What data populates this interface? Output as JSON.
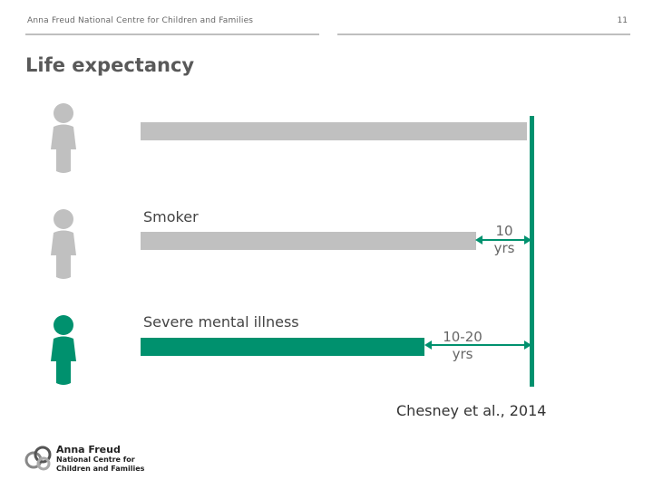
{
  "header": {
    "org": "Anna Freud National Centre for Children and Families",
    "page_number": "11"
  },
  "title": "Life expectancy",
  "rows": [
    {
      "label": "",
      "gap": ""
    },
    {
      "label": "Smoker",
      "gap_line1": "10",
      "gap_line2": "yrs"
    },
    {
      "label": "Severe mental illness",
      "gap_line1": "10-20",
      "gap_line2": "yrs"
    }
  ],
  "citation": "Chesney et al., 2014",
  "logo": {
    "name": "Anna Freud",
    "line2": "National Centre for",
    "line3": "Children and Families"
  },
  "colors": {
    "accent": "#00916e",
    "grey": "#c0c0c0"
  }
}
